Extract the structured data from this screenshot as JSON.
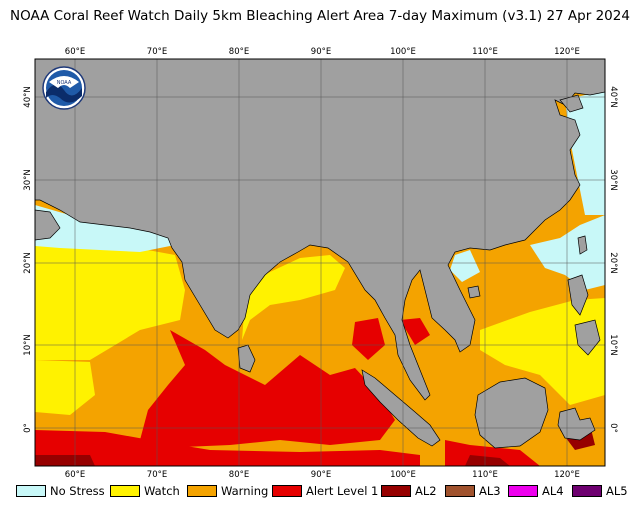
{
  "title": "NOAA Coral Reef Watch Daily 5km Bleaching Alert Area 7-day Maximum  (v3.1)   27 Apr 2024",
  "map": {
    "lon_ticks_top": [
      "60°E",
      "70°E",
      "80°E",
      "90°E",
      "100°E",
      "110°E",
      "120°E"
    ],
    "lon_ticks_bottom": [
      "60°E",
      "70°E",
      "80°E",
      "90°E",
      "100°E",
      "110°E",
      "120°E"
    ],
    "lat_ticks_left": [
      "40°N",
      "30°N",
      "20°N",
      "10°N",
      "0°"
    ],
    "lat_ticks_right": [
      "40°N",
      "30°N",
      "20°N",
      "10°N",
      "0°"
    ],
    "lon_range": [
      55,
      125
    ],
    "lat_range": [
      -4.5,
      45
    ],
    "gridlines": true,
    "logo": "noaa-logo"
  },
  "legend": {
    "items": [
      {
        "label": "No Stress",
        "color": "#c8f8f8"
      },
      {
        "label": "Watch",
        "color": "#fff200"
      },
      {
        "label": "Warning",
        "color": "#f4a300"
      },
      {
        "label": "Alert Level 1",
        "color": "#e60000"
      },
      {
        "label": "AL2",
        "color": "#960000"
      },
      {
        "label": "AL3",
        "color": "#a0522d"
      },
      {
        "label": "AL4",
        "color": "#ee00ee"
      },
      {
        "label": "AL5",
        "color": "#6e0070"
      }
    ]
  },
  "colors": {
    "land": "#a0a0a0",
    "no_stress": "#c8f8f8",
    "watch": "#fff200",
    "warning": "#f4a300",
    "alert1": "#e60000",
    "alert2": "#960000"
  }
}
